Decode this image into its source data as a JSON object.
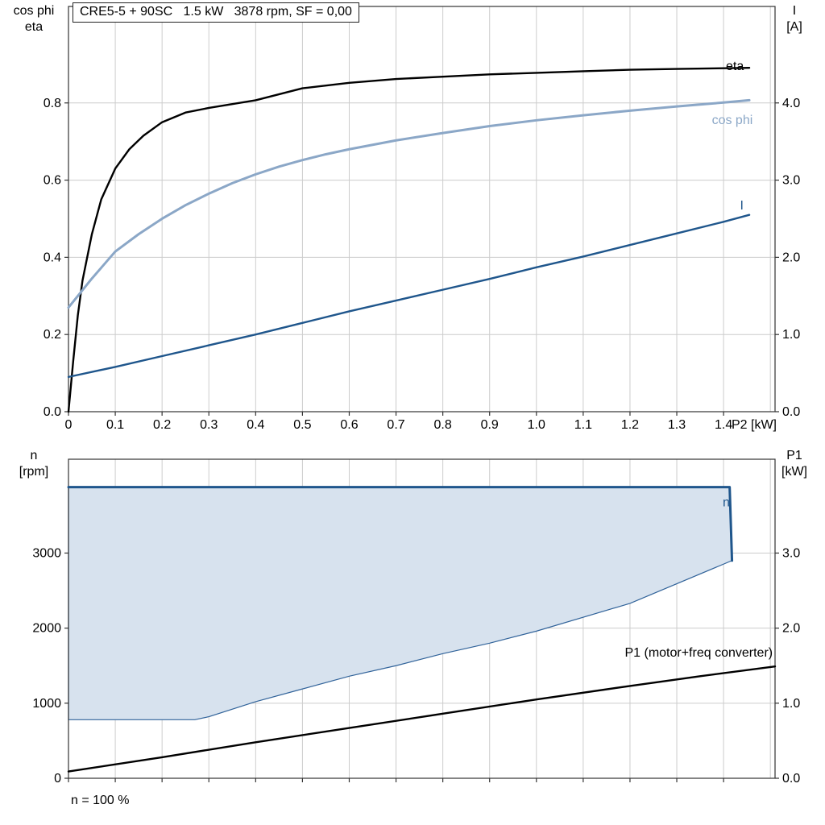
{
  "labels": {
    "top_left_axis_line1": "cos phi",
    "top_left_axis_line2": "eta",
    "top_right_axis_line1": "I",
    "top_right_axis_line2": "[A]",
    "bottom_left_axis_line1": "n",
    "bottom_left_axis_line2": "[rpm]",
    "bottom_right_axis_line1": "P1",
    "bottom_right_axis_line2": "[kW]",
    "footnote": "n = 100 %"
  },
  "colors": {
    "eta": "#000000",
    "cos_phi": "#8ba7c7",
    "current": "#1f568c",
    "n_line": "#1f568c",
    "area_fill": "#d7e2ee",
    "area_stroke": "#31639a",
    "p1": "#000000",
    "grid": "#cccccc",
    "frame": "#333333"
  },
  "chart_data": [
    {
      "type": "line",
      "title": "CRE5-5 + 90SC   1.5 kW   3878 rpm, SF = 0,00",
      "x_axis": {
        "min": 0,
        "max": 1.51,
        "label": "P2 [kW]",
        "label_x": 1.417,
        "show_tick_labels": true,
        "ticks": [
          {
            "v": 0,
            "label": "0"
          },
          {
            "v": 0.1,
            "label": "0.1"
          },
          {
            "v": 0.2,
            "label": "0.2"
          },
          {
            "v": 0.3,
            "label": "0.3"
          },
          {
            "v": 0.4,
            "label": "0.4"
          },
          {
            "v": 0.5,
            "label": "0.5"
          },
          {
            "v": 0.6,
            "label": "0.6"
          },
          {
            "v": 0.7,
            "label": "0.7"
          },
          {
            "v": 0.8,
            "label": "0.8"
          },
          {
            "v": 0.9,
            "label": "0.9"
          },
          {
            "v": 1.0,
            "label": "1.0"
          },
          {
            "v": 1.1,
            "label": "1.1"
          },
          {
            "v": 1.2,
            "label": "1.2"
          },
          {
            "v": 1.3,
            "label": "1.3"
          },
          {
            "v": 1.4,
            "label": "1.4"
          }
        ],
        "grid": [
          0.1,
          0.2,
          0.3,
          0.4,
          0.5,
          0.6,
          0.7,
          0.8,
          0.9,
          1.0,
          1.1,
          1.2,
          1.3,
          1.4,
          1.5
        ]
      },
      "y_left": {
        "min": 0,
        "max": 1.05,
        "ticks": [
          {
            "v": 0,
            "label": "0.0"
          },
          {
            "v": 0.2,
            "label": "0.2"
          },
          {
            "v": 0.4,
            "label": "0.4"
          },
          {
            "v": 0.6,
            "label": "0.6"
          },
          {
            "v": 0.8,
            "label": "0.8"
          }
        ],
        "grid": [
          0.2,
          0.4,
          0.6,
          0.8
        ]
      },
      "y_right": {
        "min": 0,
        "max": 5.25,
        "ticks": [
          {
            "v": 0,
            "label": "0.0"
          },
          {
            "v": 1,
            "label": "1.0"
          },
          {
            "v": 2,
            "label": "2.0"
          },
          {
            "v": 3,
            "label": "3.0"
          },
          {
            "v": 4,
            "label": "4.0"
          }
        ]
      },
      "series": [
        {
          "name": "eta",
          "axis": "left",
          "color": "#000000",
          "width": 2.4,
          "points": [
            [
              0,
              0
            ],
            [
              0.01,
              0.13
            ],
            [
              0.02,
              0.25
            ],
            [
              0.03,
              0.34
            ],
            [
              0.05,
              0.46
            ],
            [
              0.07,
              0.55
            ],
            [
              0.1,
              0.63
            ],
            [
              0.13,
              0.68
            ],
            [
              0.16,
              0.715
            ],
            [
              0.2,
              0.75
            ],
            [
              0.25,
              0.775
            ],
            [
              0.3,
              0.787
            ],
            [
              0.35,
              0.797
            ],
            [
              0.4,
              0.807
            ],
            [
              0.5,
              0.838
            ],
            [
              0.6,
              0.852
            ],
            [
              0.7,
              0.862
            ],
            [
              0.8,
              0.868
            ],
            [
              0.9,
              0.874
            ],
            [
              1.0,
              0.878
            ],
            [
              1.1,
              0.882
            ],
            [
              1.2,
              0.886
            ],
            [
              1.3,
              0.888
            ],
            [
              1.4,
              0.89
            ],
            [
              1.455,
              0.891
            ]
          ]
        },
        {
          "name": "cos phi",
          "axis": "left",
          "color": "#8ba7c7",
          "width": 3,
          "points": [
            [
              0,
              0.27
            ],
            [
              0.05,
              0.345
            ],
            [
              0.1,
              0.415
            ],
            [
              0.15,
              0.46
            ],
            [
              0.2,
              0.5
            ],
            [
              0.25,
              0.535
            ],
            [
              0.3,
              0.565
            ],
            [
              0.35,
              0.592
            ],
            [
              0.4,
              0.615
            ],
            [
              0.45,
              0.635
            ],
            [
              0.5,
              0.652
            ],
            [
              0.55,
              0.667
            ],
            [
              0.6,
              0.68
            ],
            [
              0.7,
              0.703
            ],
            [
              0.8,
              0.722
            ],
            [
              0.9,
              0.74
            ],
            [
              1.0,
              0.755
            ],
            [
              1.1,
              0.768
            ],
            [
              1.2,
              0.78
            ],
            [
              1.3,
              0.791
            ],
            [
              1.4,
              0.801
            ],
            [
              1.455,
              0.807
            ]
          ]
        },
        {
          "name": "I",
          "axis": "right",
          "color": "#1f568c",
          "width": 2.4,
          "points": [
            [
              0,
              0.45
            ],
            [
              0.1,
              0.58
            ],
            [
              0.2,
              0.72
            ],
            [
              0.3,
              0.86
            ],
            [
              0.4,
              1.0
            ],
            [
              0.5,
              1.15
            ],
            [
              0.6,
              1.3
            ],
            [
              0.7,
              1.44
            ],
            [
              0.8,
              1.58
            ],
            [
              0.9,
              1.72
            ],
            [
              1.0,
              1.87
            ],
            [
              1.1,
              2.01
            ],
            [
              1.2,
              2.16
            ],
            [
              1.3,
              2.31
            ],
            [
              1.4,
              2.46
            ],
            [
              1.455,
              2.55
            ]
          ]
        }
      ],
      "annotations": [
        {
          "text": "eta",
          "x": 1.405,
          "y": 0.885,
          "axis": "left",
          "color": "#000000",
          "anchor": "start"
        },
        {
          "text": "cos phi",
          "x": 1.375,
          "y": 0.745,
          "axis": "left",
          "color": "#8ba7c7",
          "anchor": "start"
        },
        {
          "text": "I",
          "x": 1.435,
          "y": 2.62,
          "axis": "right",
          "color": "#1f568c",
          "anchor": "start"
        }
      ]
    },
    {
      "type": "line",
      "title": "",
      "x_axis": {
        "min": 0,
        "max": 1.51,
        "label": "",
        "label_x": 1.417,
        "show_tick_labels": false,
        "ticks": [
          {
            "v": 0,
            "label": ""
          },
          {
            "v": 0.1,
            "label": ""
          },
          {
            "v": 0.2,
            "label": ""
          },
          {
            "v": 0.3,
            "label": ""
          },
          {
            "v": 0.4,
            "label": ""
          },
          {
            "v": 0.5,
            "label": ""
          },
          {
            "v": 0.6,
            "label": ""
          },
          {
            "v": 0.7,
            "label": ""
          },
          {
            "v": 0.8,
            "label": ""
          },
          {
            "v": 0.9,
            "label": ""
          },
          {
            "v": 1.0,
            "label": ""
          },
          {
            "v": 1.1,
            "label": ""
          },
          {
            "v": 1.2,
            "label": ""
          },
          {
            "v": 1.3,
            "label": ""
          },
          {
            "v": 1.4,
            "label": ""
          }
        ],
        "grid": [
          0.1,
          0.2,
          0.3,
          0.4,
          0.5,
          0.6,
          0.7,
          0.8,
          0.9,
          1.0,
          1.1,
          1.2,
          1.3,
          1.4,
          1.5
        ]
      },
      "y_left": {
        "min": 0,
        "max": 4250,
        "ticks": [
          {
            "v": 0,
            "label": "0"
          },
          {
            "v": 1000,
            "label": "1000"
          },
          {
            "v": 2000,
            "label": "2000"
          },
          {
            "v": 3000,
            "label": "3000"
          }
        ],
        "grid": [
          1000,
          2000,
          3000
        ]
      },
      "y_right": {
        "min": 0,
        "max": 4.25,
        "ticks": [
          {
            "v": 0,
            "label": "0.0"
          },
          {
            "v": 1,
            "label": "1.0"
          },
          {
            "v": 2,
            "label": "2.0"
          },
          {
            "v": 3,
            "label": "3.0"
          }
        ]
      },
      "series": [
        {
          "name": "n operating region",
          "type": "area",
          "axis": "left",
          "fill": "#d7e2ee",
          "color": "#31639a",
          "width": 1.2,
          "points": [
            [
              0,
              3878
            ],
            [
              1.413,
              3878
            ],
            [
              1.418,
              2900
            ],
            [
              1.2,
              2330
            ],
            [
              1.0,
              1960
            ],
            [
              0.9,
              1800
            ],
            [
              0.8,
              1660
            ],
            [
              0.7,
              1500
            ],
            [
              0.6,
              1360
            ],
            [
              0.5,
              1190
            ],
            [
              0.4,
              1020
            ],
            [
              0.3,
              820
            ],
            [
              0.27,
              780
            ],
            [
              0,
              780
            ]
          ]
        },
        {
          "name": "n",
          "axis": "left",
          "color": "#1f568c",
          "width": 3,
          "points": [
            [
              0,
              3878
            ],
            [
              1.413,
              3878
            ],
            [
              1.418,
              2900
            ]
          ]
        },
        {
          "name": "P1 (motor+freq converter)",
          "axis": "right",
          "color": "#000000",
          "width": 2.4,
          "points": [
            [
              0,
              0.09
            ],
            [
              0.2,
              0.28
            ],
            [
              0.4,
              0.48
            ],
            [
              0.6,
              0.67
            ],
            [
              0.8,
              0.86
            ],
            [
              1.0,
              1.05
            ],
            [
              1.2,
              1.23
            ],
            [
              1.35,
              1.36
            ],
            [
              1.51,
              1.49
            ]
          ]
        }
      ],
      "annotations": [
        {
          "text": "n",
          "x": 1.398,
          "y": 3620,
          "axis": "left",
          "color": "#1f568c",
          "anchor": "start"
        },
        {
          "text": "P1 (motor+freq converter)",
          "x": 1.505,
          "y": 1.62,
          "axis": "right",
          "color": "#000000",
          "anchor": "end"
        }
      ]
    }
  ]
}
